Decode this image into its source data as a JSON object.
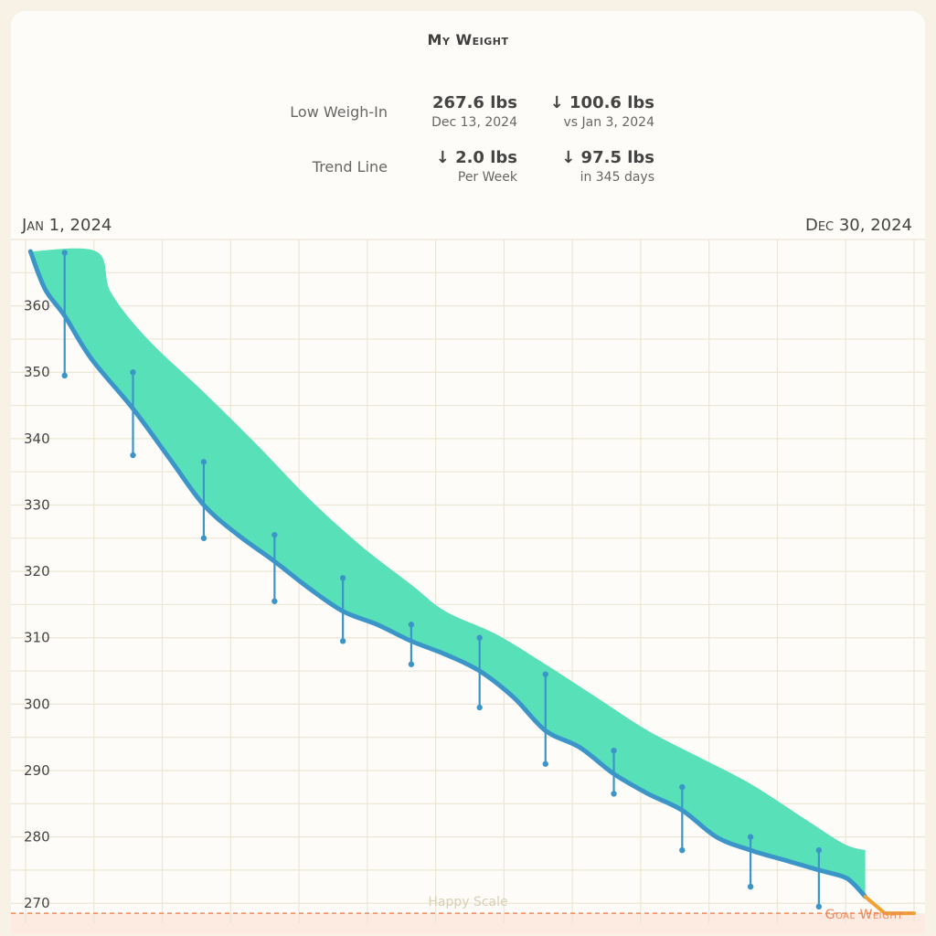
{
  "header": {
    "title": "My Weight"
  },
  "stats": {
    "low_weigh_in": {
      "label": "Low Weigh-In",
      "value": "267.6 lbs",
      "value_sub": "Dec 13, 2024",
      "change": "↓ 100.6 lbs",
      "change_sub": "vs Jan 3, 2024"
    },
    "trend_line": {
      "label": "Trend Line",
      "rate": "↓ 2.0 lbs",
      "rate_sub": "Per Week",
      "change": "↓ 97.5 lbs",
      "change_sub": "in 345 days"
    }
  },
  "range": {
    "start": "Jan 1, 2024",
    "end": "Dec 30, 2024"
  },
  "goal": {
    "label": "Goal Weight",
    "value": 268.5
  },
  "watermark": "Happy Scale",
  "colors": {
    "trend": "#3c95c8",
    "band": "#58e1b9",
    "goal": "#ee8a5a",
    "goal_zone": "#fdeae0",
    "grid": "#ebe6d6"
  },
  "chart_data": {
    "type": "line",
    "title": "My Weight",
    "x_unit": "date",
    "xlim": [
      "2024-01-01",
      "2024-12-30"
    ],
    "ylim": [
      267,
      370
    ],
    "yticks": [
      270,
      280,
      290,
      300,
      310,
      320,
      330,
      340,
      350,
      360
    ],
    "grid": true,
    "series": [
      {
        "kind": "trend",
        "points": [
          [
            "2024-01-03",
            368.2
          ],
          [
            "2024-01-09",
            362.5
          ],
          [
            "2024-01-17",
            358.5
          ],
          [
            "2024-01-28",
            352.0
          ],
          [
            "2024-02-14",
            344.5
          ],
          [
            "2024-02-29",
            337.0
          ],
          [
            "2024-03-14",
            330.0
          ],
          [
            "2024-03-28",
            325.5
          ],
          [
            "2024-04-12",
            321.5
          ],
          [
            "2024-04-26",
            317.5
          ],
          [
            "2024-05-10",
            314.0
          ],
          [
            "2024-05-24",
            312.0
          ],
          [
            "2024-06-07",
            309.5
          ],
          [
            "2024-06-21",
            307.5
          ],
          [
            "2024-07-05",
            305.0
          ],
          [
            "2024-07-19",
            301.0
          ],
          [
            "2024-08-01",
            296.0
          ],
          [
            "2024-08-15",
            293.5
          ],
          [
            "2024-08-29",
            289.5
          ],
          [
            "2024-09-12",
            286.5
          ],
          [
            "2024-09-26",
            284.0
          ],
          [
            "2024-10-10",
            280.0
          ],
          [
            "2024-10-24",
            278.0
          ],
          [
            "2024-11-07",
            276.5
          ],
          [
            "2024-11-21",
            275.0
          ],
          [
            "2024-12-01",
            274.0
          ],
          [
            "2024-12-05",
            273.0
          ],
          [
            "2024-12-10",
            271.0
          ]
        ]
      },
      {
        "kind": "upper_band",
        "points": [
          [
            "2024-01-03",
            368.2
          ],
          [
            "2024-01-30",
            368.2
          ],
          [
            "2024-02-05",
            362.0
          ],
          [
            "2024-02-20",
            355.0
          ],
          [
            "2024-03-14",
            347.0
          ],
          [
            "2024-04-05",
            339.0
          ],
          [
            "2024-04-26",
            331.0
          ],
          [
            "2024-05-17",
            324.0
          ],
          [
            "2024-06-07",
            318.0
          ],
          [
            "2024-06-21",
            314.0
          ],
          [
            "2024-07-12",
            310.5
          ],
          [
            "2024-08-01",
            306.0
          ],
          [
            "2024-08-22",
            301.0
          ],
          [
            "2024-09-12",
            296.0
          ],
          [
            "2024-10-03",
            292.0
          ],
          [
            "2024-10-24",
            288.0
          ],
          [
            "2024-11-14",
            283.0
          ],
          [
            "2024-12-01",
            279.0
          ],
          [
            "2024-12-10",
            278.0
          ]
        ]
      }
    ],
    "weigh_ins": [
      {
        "date": "2024-01-17",
        "high": 368.0,
        "low": 349.5
      },
      {
        "date": "2024-02-14",
        "high": 350.0,
        "low": 337.5
      },
      {
        "date": "2024-03-14",
        "high": 336.5,
        "low": 325.0
      },
      {
        "date": "2024-04-12",
        "high": 325.5,
        "low": 315.5
      },
      {
        "date": "2024-05-10",
        "high": 319.0,
        "low": 309.5
      },
      {
        "date": "2024-06-07",
        "high": 312.0,
        "low": 306.0
      },
      {
        "date": "2024-07-05",
        "high": 310.0,
        "low": 299.5
      },
      {
        "date": "2024-08-01",
        "high": 304.5,
        "low": 291.0
      },
      {
        "date": "2024-08-29",
        "high": 293.0,
        "low": 286.5
      },
      {
        "date": "2024-09-26",
        "high": 287.5,
        "low": 278.0
      },
      {
        "date": "2024-10-24",
        "high": 280.0,
        "low": 272.5
      },
      {
        "date": "2024-11-21",
        "high": 278.0,
        "low": 269.5
      }
    ],
    "goal_projection": [
      [
        "2024-12-10",
        271.0
      ],
      [
        "2024-12-18",
        268.5
      ],
      [
        "2024-12-30",
        268.5
      ]
    ]
  }
}
